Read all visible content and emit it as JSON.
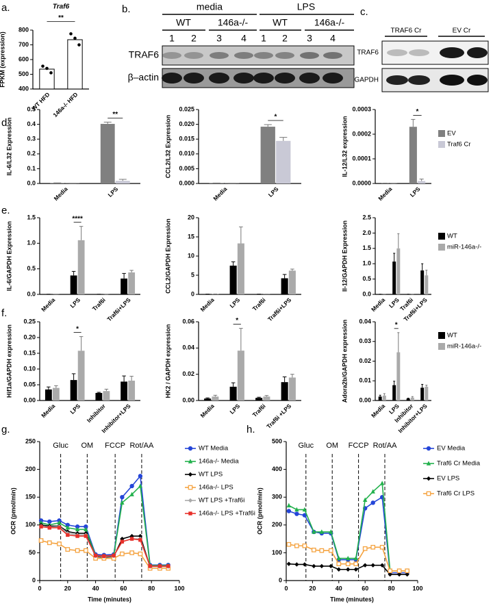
{
  "panel_labels": [
    "a.",
    "b.",
    "c.",
    "d",
    "e.",
    "f.",
    "g.",
    "h."
  ],
  "blots": {
    "b": {
      "groups": [
        "media",
        "LPS"
      ],
      "genotypes": [
        "WT",
        "146a-/-",
        "WT",
        "146a-/-"
      ],
      "lanes": [
        "1",
        "2",
        "3",
        "4",
        "1",
        "2",
        "3",
        "4"
      ],
      "rows": [
        "TRAF6",
        "β–actin"
      ]
    },
    "c": {
      "groups": [
        "TRAF6 Cr",
        "EV Cr"
      ],
      "rows": [
        "TRAF6",
        "GAPDH"
      ]
    }
  },
  "chart_data": [
    {
      "type": "bar",
      "title": "Traf6",
      "ylabel": "FPKM (expression)",
      "categories": [
        "WT HFD",
        "146a-/- HFD"
      ],
      "values": [
        535,
        735
      ],
      "points": [
        [
          555,
          540,
          510
        ],
        [
          775,
          745,
          700
        ]
      ],
      "color": "#ffffff",
      "edgecolor": "#000000",
      "ylim": [
        400,
        800
      ],
      "yticks": [
        400,
        500,
        600,
        700,
        800
      ],
      "significance": "**"
    },
    {
      "type": "bar",
      "ylabel": "IL-6/L32 Expression",
      "categories": [
        "Media",
        "LPS"
      ],
      "series": [
        {
          "color": "#808080",
          "values": [
            0.003,
            0.403
          ],
          "errors": [
            0.001,
            0.012
          ]
        },
        {
          "color": "#c9c9d6",
          "values": [
            0.001,
            0.018
          ],
          "errors": [
            0.0005,
            0.01
          ]
        }
      ],
      "ylim": [
        0,
        0.5
      ],
      "yticks": [
        {
          "value": 0,
          "label": "0.0"
        },
        0.1,
        0.2,
        0.3,
        0.4,
        0.5
      ],
      "significance": "**"
    },
    {
      "type": "bar",
      "ylabel": "CCL2/L32 Expression",
      "categories": [
        "Media",
        "LPS"
      ],
      "series": [
        {
          "color": "#808080",
          "values": [
            0.0001,
            0.0192
          ],
          "errors": [
            5e-05,
            0.0007
          ]
        },
        {
          "color": "#c9c9d6",
          "values": [
            5e-05,
            0.0144
          ],
          "errors": [
            3e-05,
            0.0012
          ]
        }
      ],
      "ylim": [
        0,
        0.025
      ],
      "yticks": [
        {
          "value": 0,
          "label": "0.000"
        },
        0.005,
        {
          "value": 0.01,
          "label": "0.010"
        },
        0.015,
        {
          "value": 0.02,
          "label": "0.020"
        },
        0.025
      ],
      "significance": "*"
    },
    {
      "type": "bar",
      "ylabel": "IL-12/L32 expression",
      "categories": [
        "Media",
        "LPS"
      ],
      "series": [
        {
          "name": "EV",
          "color": "#808080",
          "values": [
            1e-06,
            0.00023
          ],
          "errors": [
            5e-07,
            3e-05
          ]
        },
        {
          "name": "Traf6 Cr",
          "color": "#c9c9d6",
          "values": [
            5e-07,
            1e-05
          ],
          "errors": [
            3e-07,
            8e-06
          ]
        }
      ],
      "ylim": [
        0,
        0.0003
      ],
      "yticks": [
        {
          "value": 0,
          "label": "0.0000"
        },
        0.0001,
        0.0002,
        0.0003
      ],
      "significance": "*",
      "legend": "right"
    },
    {
      "type": "bar",
      "ylabel": "IL-6/GAPDH Expression",
      "categories": [
        "Media",
        "LPS",
        "Traf6i",
        "Traf6i+LPS"
      ],
      "series": [
        {
          "color": "#000000",
          "values": [
            0.002,
            0.37,
            0.002,
            0.31
          ],
          "errors": [
            0.001,
            0.08,
            0.001,
            0.1
          ]
        },
        {
          "color": "#aaaaaa",
          "values": [
            0.003,
            1.06,
            0.002,
            0.43
          ],
          "errors": [
            0.001,
            0.27,
            0.001,
            0.04
          ]
        }
      ],
      "ylim": [
        0,
        1.5
      ],
      "yticks": [
        {
          "value": 0,
          "label": "0.0"
        },
        0.5,
        {
          "value": 1,
          "label": "1.0"
        },
        1.5
      ],
      "significance": "****"
    },
    {
      "type": "bar",
      "ylabel": "CCL2/GAPDH Expression",
      "categories": [
        "Media",
        "LPS",
        "Traf6i",
        "Traf6i+LPS"
      ],
      "series": [
        {
          "color": "#000000",
          "values": [
            0.05,
            7.5,
            0.05,
            4.2
          ],
          "errors": [
            0.02,
            1.0,
            0.02,
            1.0
          ]
        },
        {
          "color": "#aaaaaa",
          "values": [
            0.08,
            13.3,
            0.05,
            6.2
          ],
          "errors": [
            0.03,
            4.3,
            0.02,
            0.4
          ]
        }
      ],
      "ylim": [
        0,
        20
      ],
      "yticks": [
        0,
        5,
        10,
        15,
        20
      ]
    },
    {
      "type": "bar",
      "ylabel": "Il-12/GAPDH Expression",
      "categories": [
        "Media",
        "LPS",
        "Traf6i",
        "Traf6i+LPS"
      ],
      "series": [
        {
          "name": "WT",
          "color": "#000000",
          "values": [
            0.005,
            1.07,
            0.005,
            0.78
          ],
          "errors": [
            0.002,
            0.27,
            0.002,
            0.22
          ]
        },
        {
          "name": "miR-146a-/-",
          "color": "#aaaaaa",
          "values": [
            0.005,
            1.5,
            0.005,
            0.62
          ],
          "errors": [
            0.002,
            0.48,
            0.002,
            0.17
          ]
        }
      ],
      "ylim": [
        0,
        2.5
      ],
      "yticks": [
        {
          "value": 0,
          "label": "0.0"
        },
        0.5,
        {
          "value": 1,
          "label": "1.0"
        },
        1.5,
        {
          "value": 2,
          "label": "2.0"
        },
        2.5
      ],
      "legend": "right"
    },
    {
      "type": "bar",
      "ylabel": "Hif1a/GAPDH expression",
      "categories": [
        "Media",
        "LPS",
        "Inhibitor",
        "Inhibitor+LPS"
      ],
      "series": [
        {
          "color": "#000000",
          "values": [
            0.035,
            0.065,
            0.024,
            0.06
          ],
          "errors": [
            0.008,
            0.02,
            0.002,
            0.018
          ]
        },
        {
          "color": "#aaaaaa",
          "values": [
            0.04,
            0.158,
            0.03,
            0.063
          ],
          "errors": [
            0.007,
            0.045,
            0.006,
            0.014
          ]
        }
      ],
      "ylim": [
        0,
        0.25
      ],
      "yticks": [
        {
          "value": 0,
          "label": "0.00"
        },
        0.05,
        {
          "value": 0.1,
          "label": "0.10"
        },
        0.15,
        {
          "value": 0.2,
          "label": "0.20"
        },
        0.25
      ],
      "significance": "*"
    },
    {
      "type": "bar",
      "ylabel": "HK2 / GAPDH expression",
      "categories": [
        "Media",
        "LPS",
        "Traf6i",
        "Traf6i +LPS"
      ],
      "series": [
        {
          "color": "#000000",
          "values": [
            0.0015,
            0.0105,
            0.002,
            0.014
          ],
          "errors": [
            0.0005,
            0.003,
            0.0005,
            0.004
          ]
        },
        {
          "color": "#aaaaaa",
          "values": [
            0.003,
            0.038,
            0.003,
            0.0175
          ],
          "errors": [
            0.001,
            0.017,
            0.0008,
            0.0025
          ]
        }
      ],
      "ylim": [
        0,
        0.06
      ],
      "yticks": [
        {
          "value": 0,
          "label": "0.00"
        },
        0.02,
        0.04,
        0.06
      ],
      "significance": "*"
    },
    {
      "type": "bar",
      "ylabel": "Adora2b/GAPDH expression",
      "categories": [
        "Media",
        "LPS",
        "Inhibitor",
        "Inhibitor+LPS"
      ],
      "series": [
        {
          "name": "WT",
          "color": "#000000",
          "values": [
            0.002,
            0.0078,
            0.001,
            0.0065
          ],
          "errors": [
            0.0007,
            0.002,
            0.0002,
            0.0017
          ]
        },
        {
          "name": "miR-146a-/-",
          "color": "#aaaaaa",
          "values": [
            0.0025,
            0.0245,
            0.0015,
            0.007
          ],
          "errors": [
            0.001,
            0.01,
            0.0005,
            0.0008
          ]
        }
      ],
      "ylim": [
        0,
        0.04
      ],
      "yticks": [
        {
          "value": 0,
          "label": "0.00"
        },
        0.01,
        0.02,
        0.03,
        0.04
      ],
      "significance": "*",
      "legend": "right"
    },
    {
      "type": "line",
      "ylabel": "OCR (pmol/min)",
      "xlabel": "Time (minutes)",
      "x": [
        1,
        7,
        14,
        20,
        27,
        33,
        40,
        46,
        53,
        59,
        66,
        72,
        79,
        86,
        92
      ],
      "vlines": [
        {
          "value": 15,
          "label": "Gluc"
        },
        {
          "value": 34,
          "label": "OM"
        },
        {
          "value": 54,
          "label": "FCCP"
        },
        {
          "value": 73,
          "label": "Rot/AA"
        }
      ],
      "series": [
        {
          "name": "WT Media",
          "color": "#2546d8",
          "marker": "circle",
          "values": [
            108,
            106,
            108,
            100,
            97,
            97,
            47,
            46,
            47,
            150,
            170,
            188,
            28,
            28,
            28
          ]
        },
        {
          "name": "146a-/- Media",
          "color": "#22b14c",
          "marker": "triangle",
          "values": [
            104,
            100,
            104,
            95,
            92,
            92,
            45,
            44,
            45,
            140,
            155,
            170,
            27,
            27,
            27
          ]
        },
        {
          "name": "WT LPS",
          "color": "#000000",
          "marker": "diamond",
          "values": [
            100,
            98,
            98,
            88,
            85,
            85,
            43,
            42,
            43,
            75,
            80,
            80,
            25,
            25,
            25
          ]
        },
        {
          "name": "146a-/- LPS",
          "color": "#f5a340",
          "marker": "square-open",
          "values": [
            72,
            68,
            66,
            56,
            54,
            54,
            40,
            40,
            40,
            48,
            50,
            48,
            22,
            22,
            22
          ]
        },
        {
          "name": "WT LPS +Traf6i",
          "color": "#aaaaaa",
          "marker": "diamond",
          "values": [
            98,
            96,
            97,
            85,
            82,
            82,
            44,
            43,
            44,
            70,
            75,
            75,
            25,
            25,
            25
          ]
        },
        {
          "name": "146a-/- LPS +Traf6i",
          "color": "#e8302a",
          "marker": "square",
          "values": [
            97,
            95,
            95,
            82,
            80,
            80,
            45,
            44,
            45,
            70,
            75,
            73,
            26,
            26,
            26
          ]
        }
      ],
      "xlim": [
        0,
        100
      ],
      "xticks": [
        0,
        20,
        40,
        60,
        80,
        100
      ],
      "ylim": [
        0,
        250
      ],
      "yticks": [
        0,
        50,
        100,
        150,
        200,
        250
      ],
      "legend": "right"
    },
    {
      "type": "line",
      "ylabel": "OCR (pmol/min)",
      "xlabel": "Time (minutes)",
      "x": [
        2,
        8,
        14,
        21,
        27,
        34,
        40,
        47,
        53,
        60,
        66,
        73,
        79,
        86,
        92
      ],
      "vlines": [
        {
          "value": 15,
          "label": "Gluc"
        },
        {
          "value": 35,
          "label": "OM"
        },
        {
          "value": 55,
          "label": "FCCP"
        },
        {
          "value": 75,
          "label": "Rot/AA"
        }
      ],
      "series": [
        {
          "name": "EV Media",
          "color": "#2546d8",
          "marker": "circle",
          "values": [
            250,
            240,
            235,
            175,
            170,
            170,
            75,
            75,
            75,
            260,
            280,
            300,
            28,
            28,
            28
          ]
        },
        {
          "name": "Traf6 Cr Media",
          "color": "#22b14c",
          "marker": "triangle",
          "values": [
            270,
            255,
            255,
            175,
            175,
            175,
            80,
            80,
            80,
            290,
            320,
            350,
            35,
            35,
            35
          ]
        },
        {
          "name": "EV LPS",
          "color": "#000000",
          "marker": "diamond",
          "values": [
            60,
            58,
            58,
            52,
            52,
            52,
            40,
            40,
            40,
            55,
            55,
            55,
            22,
            22,
            22
          ]
        },
        {
          "name": "Traf6 Cr LPS",
          "color": "#f5a340",
          "marker": "square-open",
          "values": [
            130,
            125,
            125,
            110,
            108,
            108,
            60,
            60,
            60,
            115,
            120,
            120,
            35,
            35,
            35
          ]
        }
      ],
      "xlim": [
        0,
        100
      ],
      "xticks": [
        0,
        20,
        40,
        60,
        80,
        100
      ],
      "ylim": [
        0,
        500
      ],
      "yticks": [
        0,
        100,
        200,
        300,
        400,
        500
      ],
      "legend": "right"
    }
  ]
}
